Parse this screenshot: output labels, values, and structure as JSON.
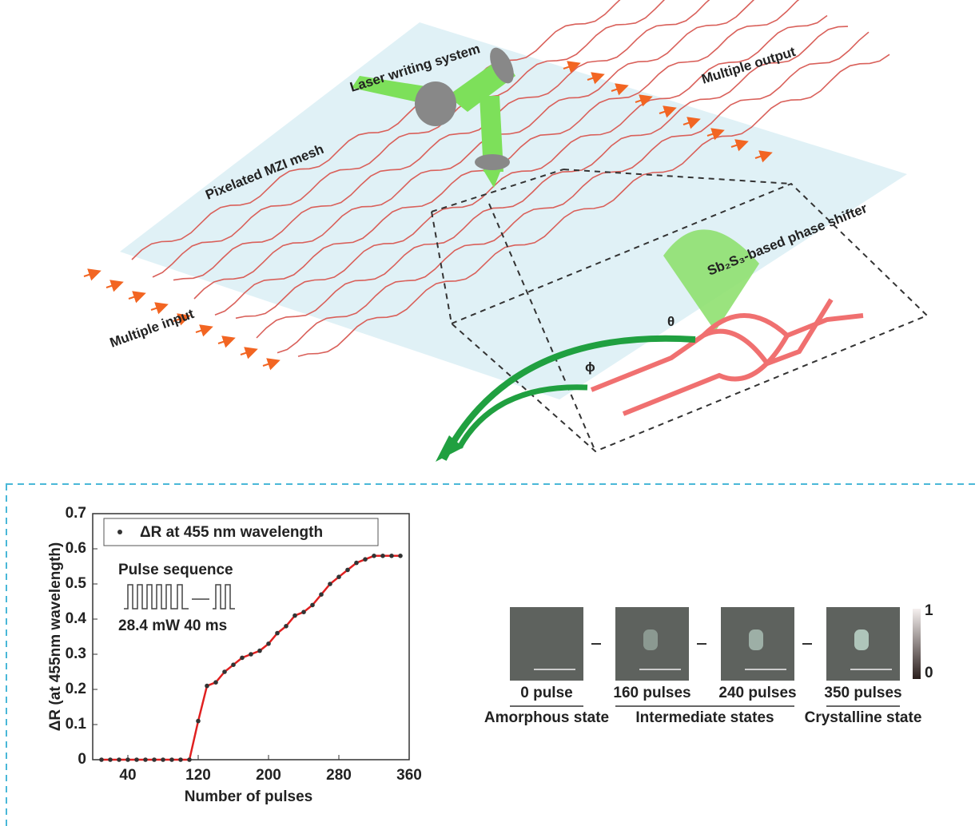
{
  "diagram": {
    "laser": "Laser writing system",
    "output": "Multiple output",
    "mesh": "Pixelated MZI mesh",
    "input": "Multiple input",
    "shifter": "Sb₂S₃-based phase shifter",
    "theta": "θ",
    "phi": "ϕ"
  },
  "chart_data": {
    "type": "scatter",
    "ylabel": "ΔR (at 455nm wavelength)",
    "xlabel": "Number of pulses",
    "series": [
      {
        "name": "ΔR at 455 nm wavelength",
        "color": "#333333",
        "line_color": "#e02020",
        "x": [
          10,
          20,
          30,
          40,
          50,
          60,
          70,
          80,
          90,
          100,
          110,
          120,
          130,
          140,
          150,
          160,
          170,
          180,
          190,
          200,
          210,
          220,
          230,
          240,
          250,
          260,
          270,
          280,
          290,
          300,
          310,
          320,
          330,
          340,
          350
        ],
        "values": [
          0,
          0,
          0,
          0,
          0,
          0,
          0,
          0,
          0,
          0,
          0,
          0.11,
          0.21,
          0.22,
          0.25,
          0.27,
          0.29,
          0.3,
          0.31,
          0.33,
          0.36,
          0.38,
          0.41,
          0.42,
          0.44,
          0.47,
          0.5,
          0.52,
          0.54,
          0.56,
          0.57,
          0.58,
          0.58,
          0.58,
          0.58
        ]
      }
    ],
    "xlim": [
      0,
      360
    ],
    "ylim": [
      0,
      0.7
    ],
    "xticks": [
      40,
      120,
      200,
      280,
      360
    ],
    "yticks": [
      0,
      0.1,
      0.2,
      0.3,
      0.4,
      0.5,
      0.6,
      0.7
    ]
  },
  "inset": {
    "title": "Pulse sequence",
    "label": "28.4 mW 40 ms"
  },
  "states": {
    "pulses": [
      "0 pulse",
      "160 pulses",
      "240 pulses",
      "350 pulses"
    ],
    "groups": [
      "Amorphous state",
      "Intermediate states",
      "Crystalline state"
    ],
    "colorbar": [
      1,
      0
    ]
  }
}
